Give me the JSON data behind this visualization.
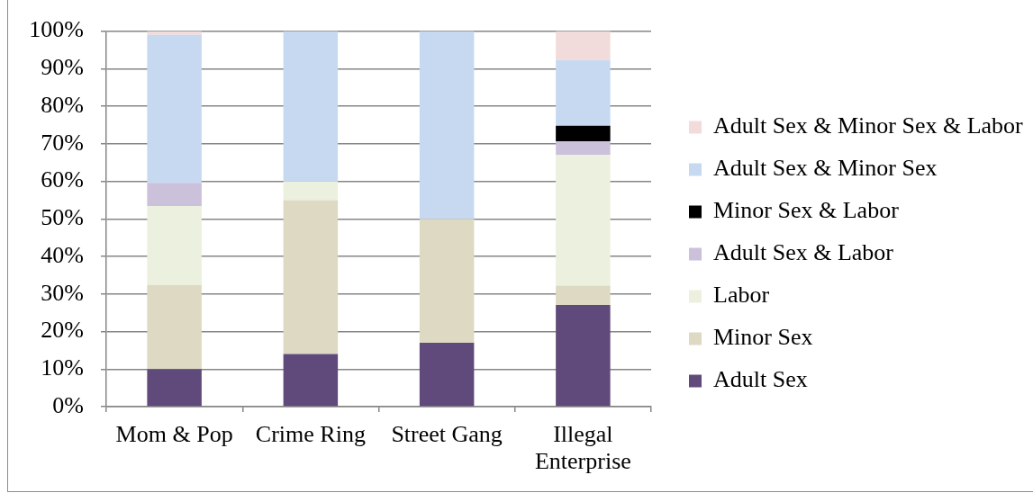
{
  "chart_data": {
    "type": "bar",
    "stacked": true,
    "categories": [
      "Mom & Pop",
      "Crime Ring",
      "Street Gang",
      "Illegal Enterprise"
    ],
    "series": [
      {
        "name": "Adult Sex",
        "color": "#604a7b",
        "values": [
          10,
          14,
          17,
          27.1
        ]
      },
      {
        "name": "Minor Sex",
        "color": "#ddd9c3",
        "values": [
          22.4,
          41,
          33,
          5.1
        ]
      },
      {
        "name": "Labor",
        "color": "#ebf1de",
        "values": [
          21,
          5,
          0,
          34.8
        ]
      },
      {
        "name": "Adult Sex & Labor",
        "color": "#ccc1da",
        "values": [
          6.2,
          0,
          0,
          3.7
        ]
      },
      {
        "name": "Minor Sex & Labor",
        "color": "#000000",
        "values": [
          0,
          0,
          0,
          4.1
        ]
      },
      {
        "name": "Adult Sex & Minor Sex",
        "color": "#c6d9f1",
        "values": [
          39.4,
          40,
          50,
          17.5
        ]
      },
      {
        "name": "Adult Sex & Minor Sex & Labor",
        "color": "#f2dcdb",
        "values": [
          1,
          0,
          0,
          7.7
        ]
      }
    ],
    "ylim": [
      0,
      100
    ],
    "yticks": [
      {
        "value": 0,
        "label": "0%"
      },
      {
        "value": 10,
        "label": "10%"
      },
      {
        "value": 20,
        "label": "20%"
      },
      {
        "value": 30,
        "label": "30%"
      },
      {
        "value": 40,
        "label": "40%"
      },
      {
        "value": 50,
        "label": "50%"
      },
      {
        "value": 60,
        "label": "60%"
      },
      {
        "value": 70,
        "label": "70%"
      },
      {
        "value": 80,
        "label": "80%"
      },
      {
        "value": 90,
        "label": "90%"
      },
      {
        "value": 100,
        "label": "100%"
      }
    ],
    "grid": "y",
    "legend": "right"
  }
}
